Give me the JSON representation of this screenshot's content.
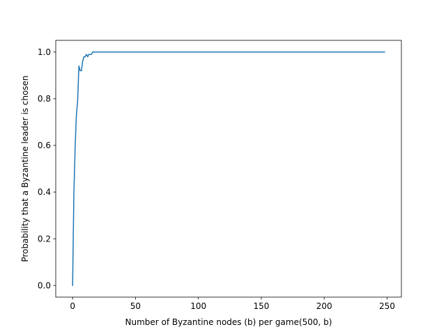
{
  "chart_data": {
    "type": "line",
    "title": "",
    "xlabel": "Number of Byzantine nodes (b) per game(500, b)",
    "ylabel": "Probability that a Byzantine leader is chosen",
    "xlim": [
      -13.4,
      261.4
    ],
    "ylim": [
      -0.05,
      1.05
    ],
    "x_ticks": [
      0,
      50,
      100,
      150,
      200,
      250
    ],
    "y_ticks": [
      0.0,
      0.2,
      0.4,
      0.6,
      0.8,
      1.0
    ],
    "x_tick_labels": [
      "0",
      "50",
      "100",
      "150",
      "200",
      "250"
    ],
    "y_tick_labels": [
      "0.0",
      "0.2",
      "0.4",
      "0.6",
      "0.8",
      "1.0"
    ],
    "grid": false,
    "series": [
      {
        "color": "#1f77b4",
        "x": [
          0,
          1,
          2,
          3,
          4,
          5,
          6,
          7,
          8,
          9,
          10,
          11,
          12,
          13,
          14,
          15,
          16,
          17,
          18,
          20,
          50,
          100,
          150,
          200,
          248
        ],
        "y": [
          0.0,
          0.39,
          0.59,
          0.73,
          0.79,
          0.94,
          0.92,
          0.92,
          0.96,
          0.98,
          0.98,
          0.99,
          0.98,
          0.99,
          0.99,
          0.99,
          1.0,
          1.0,
          1.0,
          1.0,
          1.0,
          1.0,
          1.0,
          1.0,
          1.0
        ]
      }
    ]
  }
}
